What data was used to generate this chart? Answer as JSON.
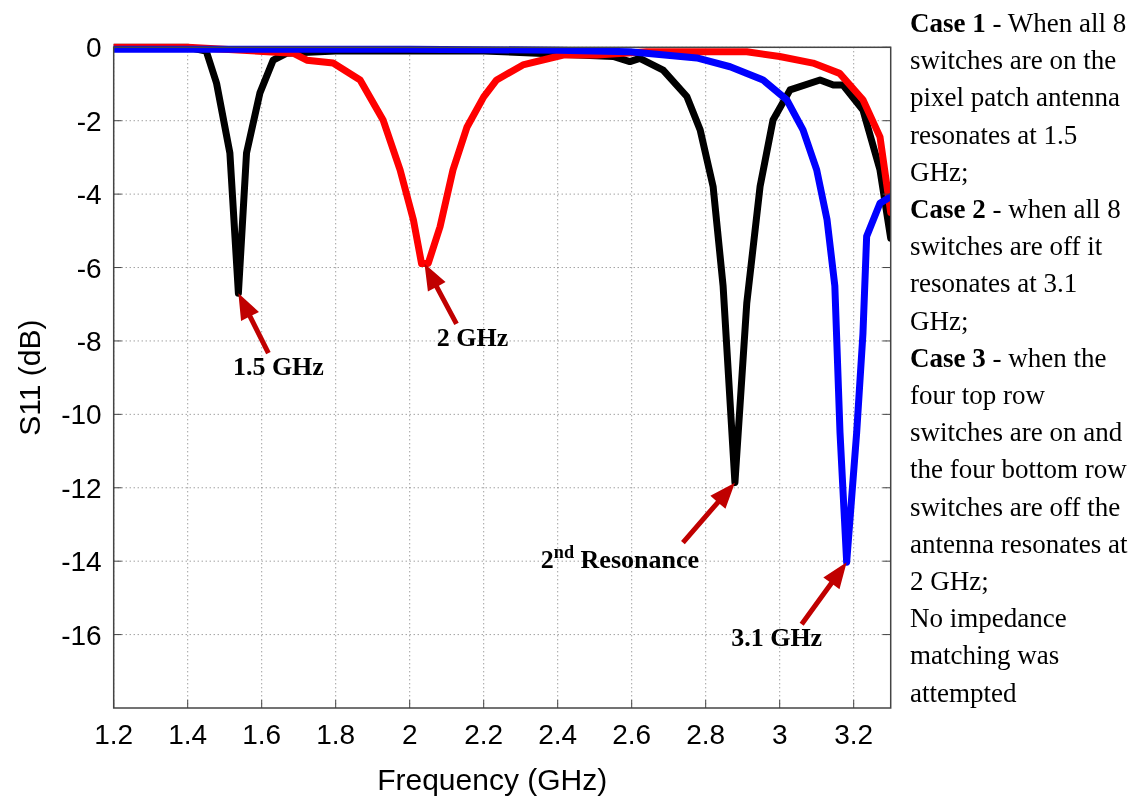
{
  "chart_data": {
    "type": "line",
    "xlabel": "Frequency (GHz)",
    "ylabel": "S11 (dB)",
    "xlim": [
      1.2,
      3.3
    ],
    "ylim": [
      -18,
      0
    ],
    "xticks": [
      1.2,
      1.4,
      1.6,
      1.8,
      2,
      2.2,
      2.4,
      2.6,
      2.8,
      3,
      3.2
    ],
    "yticks": [
      0,
      -2,
      -4,
      -6,
      -8,
      -10,
      -12,
      -14,
      -16
    ],
    "grid": true,
    "line_style": "solid",
    "marker": "none",
    "series": [
      {
        "color": "#000000",
        "x": [
          1.2,
          1.4,
          1.45,
          1.478,
          1.514,
          1.537,
          1.559,
          1.595,
          1.631,
          1.668,
          1.8,
          2.0,
          2.2,
          2.4,
          2.55,
          2.595,
          2.622,
          2.685,
          2.749,
          2.785,
          2.82,
          2.847,
          2.879,
          2.911,
          2.947,
          2.982,
          3.028,
          3.109,
          3.145,
          3.171,
          3.225,
          3.271,
          3.3
        ],
        "values": [
          0,
          0,
          -0.1,
          -0.98,
          -2.88,
          -6.7,
          -2.88,
          -1.25,
          -0.35,
          -0.16,
          -0.1,
          -0.1,
          -0.1,
          null,
          -0.25,
          -0.39,
          -0.3,
          -0.62,
          -1.34,
          -2.25,
          -3.79,
          -6.5,
          -11.86,
          -6.97,
          -3.79,
          -1.98,
          -1.16,
          -0.89,
          -1.03,
          -1.03,
          -1.71,
          -3.34,
          -5.2
        ]
      },
      {
        "color": "#ff0000",
        "x": [
          1.2,
          1.4,
          1.6,
          1.685,
          1.722,
          1.793,
          1.866,
          1.928,
          1.974,
          2.01,
          2.032,
          2.05,
          2.082,
          2.117,
          2.155,
          2.2,
          2.235,
          2.306,
          2.415,
          2.506,
          2.641,
          2.911,
          3.0,
          3.09,
          3.162,
          3.225,
          3.271,
          3.3
        ],
        "values": [
          0,
          0,
          null,
          -0.16,
          -0.35,
          -0.43,
          -0.89,
          -1.98,
          -3.34,
          -4.7,
          -5.89,
          -5.89,
          -4.89,
          -3.34,
          -2.17,
          -1.35,
          -0.89,
          -0.48,
          -0.21,
          -0.21,
          -0.12,
          -0.12,
          -0.25,
          -0.43,
          -0.71,
          -1.43,
          -2.44,
          -4.5
        ]
      },
      {
        "color": "#0000ff",
        "x": [
          1.2,
          1.6,
          2.0,
          2.4,
          2.595,
          2.776,
          2.866,
          2.955,
          3.019,
          3.063,
          3.1,
          3.128,
          3.149,
          3.163,
          3.181,
          3.208,
          3.225,
          3.235,
          3.271,
          3.3
        ],
        "values": [
          -0.05,
          -0.05,
          -0.05,
          -0.08,
          -0.12,
          -0.29,
          -0.53,
          -0.89,
          -1.43,
          -2.25,
          -3.34,
          -4.7,
          -6.5,
          -10.5,
          -14.03,
          -10.5,
          -7.8,
          -5.15,
          -4.25,
          -4.07
        ]
      }
    ],
    "annotations": [
      {
        "text": "1.5 GHz",
        "x": 1.537,
        "y": -6.7
      },
      {
        "text": "2 GHz",
        "x": 2.04,
        "y": -5.9
      },
      {
        "text": "2$^{nd}$ Resonance",
        "x": 2.879,
        "y": -11.86
      },
      {
        "text": "3.1 GHz",
        "x": 3.181,
        "y": -14.03
      },
      "Case 1 - When all 8 switches are on the pixel patch antenna resonates at 1.5 GHz;",
      "Case 2 - when all 8 switches are off it resonates at 3.1 GHz;",
      "Case 3 -  when the four top row switches are on and the four bottom row switches are off the antenna resonates at 2 GHz;",
      "No impedance matching was attempted"
    ]
  }
}
